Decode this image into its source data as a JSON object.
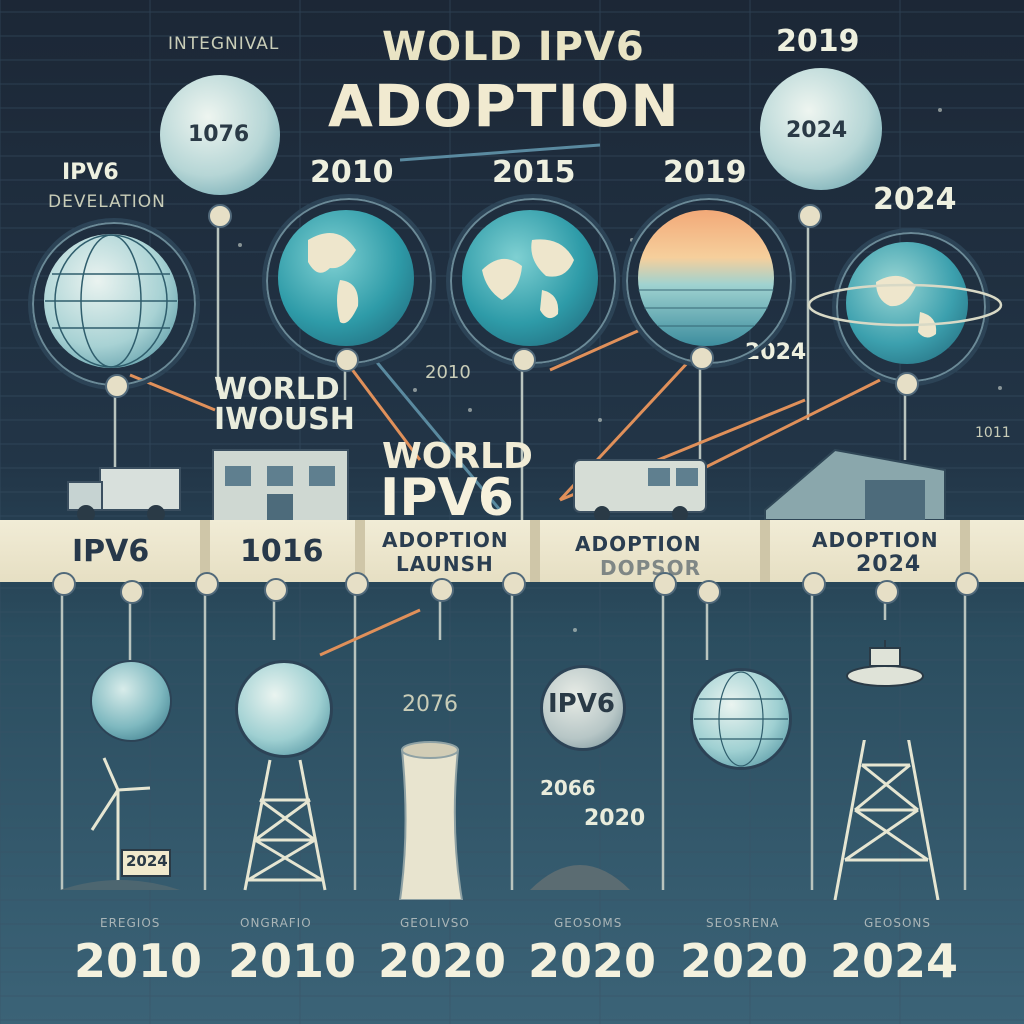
{
  "header": {
    "top_left": "INTEGNIVAL",
    "title_line1": "WOLD IPV6",
    "title_line2": "ADOPTION",
    "top_right_year": "2019"
  },
  "upper_row": {
    "left_label_line1": "IPV6",
    "left_label_line2": "DEVELATION",
    "small_globe_left": "1076",
    "small_globe_right": "2024",
    "year_labels": [
      "2010",
      "2015",
      "2019",
      "2024"
    ],
    "year_label_mid": "2024",
    "world_text_line1": "WORLD",
    "world_text_line2": "IWOUSH",
    "mid_year": "2010",
    "right_small": "1011",
    "center_line1": "WORLD",
    "center_line2": "IPV6"
  },
  "banner": {
    "segments": [
      "IPV6",
      "1016"
    ],
    "center_line1": "ADOPTION",
    "center_line2": "LAUNSH",
    "right_line1": "ADOPTION",
    "right_line2": "DOPSOR",
    "far_right_line1": "ADOPTION",
    "far_right_line2": "2024"
  },
  "lower_row": {
    "globe_label": "IPV6",
    "year_2076": "2076",
    "year_2066": "2066",
    "year_2020": "2020",
    "sign_text": "2024"
  },
  "bottom": {
    "captions": [
      "EREGIOS",
      "ONGRAFIO",
      "GEOLIVSO",
      "GEOSOMS",
      "SEOSRENA",
      "GEOSONS"
    ],
    "years": [
      "2010",
      "2010",
      "2020",
      "2020",
      "2020",
      "2024"
    ]
  },
  "colors": {
    "background_top": "#1c2736",
    "background_bottom": "#3b6377",
    "banner": "#ece6cd",
    "text_light": "#f1ead0",
    "accent_orange": "#e0905a",
    "globe_teal": "#3fa7b4"
  }
}
